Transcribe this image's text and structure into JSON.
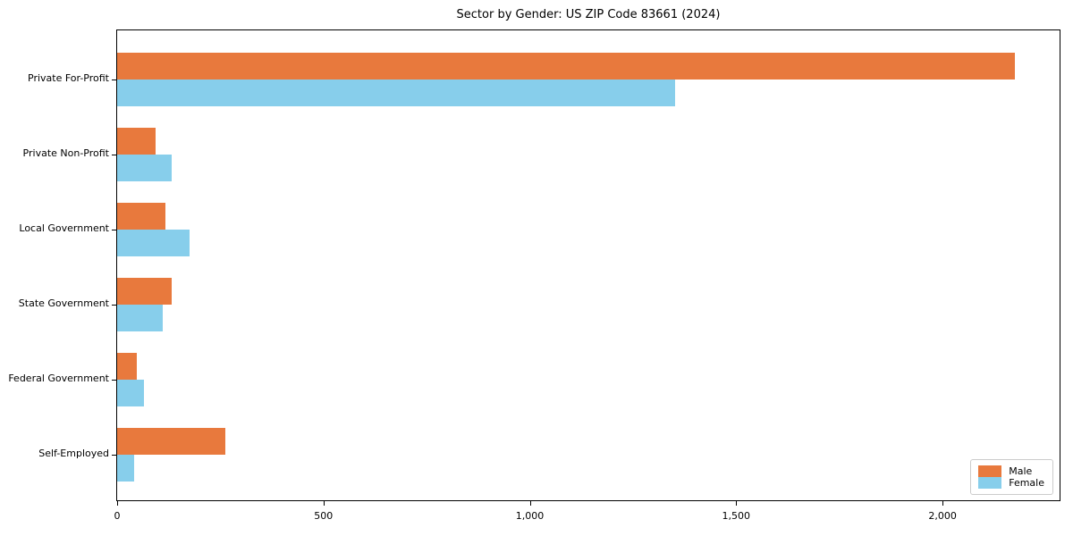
{
  "title": "Sector by Gender: US ZIP Code 83661 (2024)",
  "colors": {
    "male": "#e8793d",
    "female": "#87ceeb",
    "spine": "#000000",
    "text": "#000000",
    "legend_border": "#cccccc",
    "background": "#ffffff"
  },
  "legend": {
    "position": "lower right",
    "items": [
      {
        "label": "Male",
        "color": "#e8793d"
      },
      {
        "label": "Female",
        "color": "#87ceeb"
      }
    ]
  },
  "chart_data": {
    "type": "bar",
    "orientation": "horizontal",
    "title": "Sector by Gender: US ZIP Code 83661 (2024)",
    "xlabel": "",
    "ylabel": "",
    "categories": [
      "Private For-Profit",
      "Private Non-Profit",
      "Local Government",
      "State Government",
      "Federal Government",
      "Self-Employed"
    ],
    "series": [
      {
        "name": "Male",
        "color": "#e8793d",
        "values": [
          2176,
          93,
          117,
          133,
          48,
          262
        ]
      },
      {
        "name": "Female",
        "color": "#87ceeb",
        "values": [
          1352,
          132,
          175,
          110,
          65,
          41
        ]
      }
    ],
    "xlim": [
      0,
      2288
    ],
    "xticks": [
      0,
      500,
      1000,
      1500,
      2000
    ],
    "xtick_labels": [
      "0",
      "500",
      "1,000",
      "1,500",
      "2,000"
    ],
    "grid": false,
    "legend_position": "lower right"
  }
}
